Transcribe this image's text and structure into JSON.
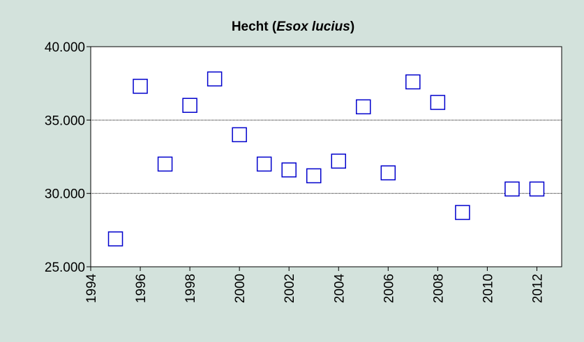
{
  "chart_data": {
    "type": "scatter",
    "title": [
      "Hecht (",
      "Esox lucius",
      ")"
    ],
    "x": [
      1995,
      1996,
      1997,
      1998,
      1999,
      2000,
      2001,
      2002,
      2003,
      2004,
      2005,
      2006,
      2007,
      2008,
      2009,
      2011,
      2012
    ],
    "values": [
      26900,
      37300,
      32000,
      36000,
      37800,
      34000,
      32000,
      31600,
      31200,
      32200,
      35900,
      31400,
      37600,
      36200,
      28700,
      30300,
      30300
    ],
    "color": "#0000cc",
    "xlim": [
      1994,
      2013
    ],
    "xticks": [
      1994,
      1996,
      1998,
      2000,
      2002,
      2004,
      2006,
      2008,
      2010,
      2012
    ],
    "ylim": [
      25000,
      40000
    ],
    "yticks": [
      {
        "value": 25000,
        "label": "25.000"
      },
      {
        "value": 30000,
        "label": "30.000"
      },
      {
        "value": 35000,
        "label": "35.000"
      },
      {
        "value": 40000,
        "label": "40.000"
      }
    ],
    "grid": true
  }
}
